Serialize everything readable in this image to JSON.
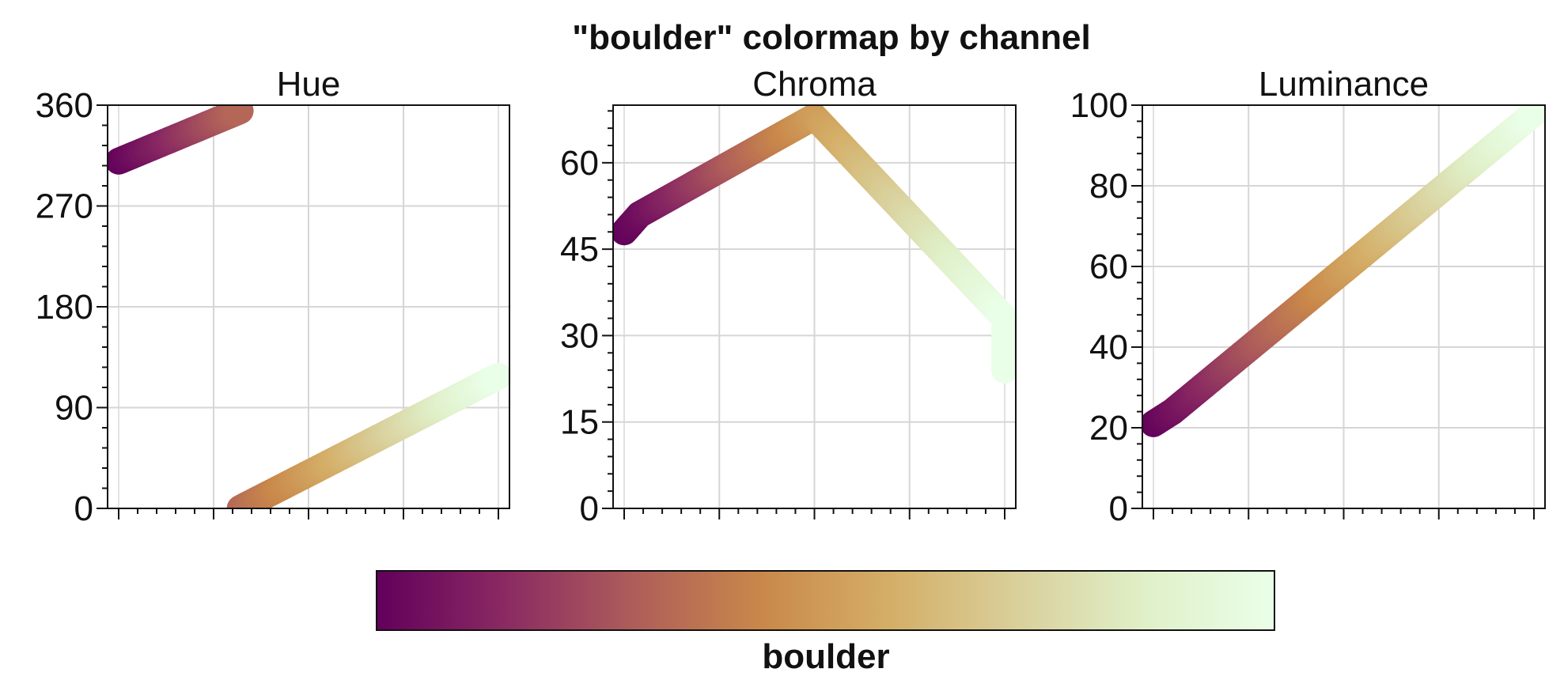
{
  "figure": {
    "title": "\"boulder\" colormap by channel"
  },
  "colormap": {
    "name": "boulder",
    "stops": [
      "#62005b",
      "#8a2a62",
      "#ae5d5a",
      "#c9884a",
      "#d4ae67",
      "#d9d09b",
      "#e0f0c9",
      "#e9ffe8"
    ]
  },
  "chart_data": [
    {
      "type": "line",
      "title": "Hue",
      "xlabel": "",
      "ylabel": "",
      "xlim": [
        0,
        1
      ],
      "ylim": [
        0,
        360
      ],
      "yticks": [
        0,
        90,
        180,
        270,
        360
      ],
      "x_major_ticks": [
        0,
        0.25,
        0.5,
        0.75,
        1
      ],
      "grid": true,
      "segments": [
        {
          "x": [
            0,
            0.32
          ],
          "y": [
            310,
            355
          ]
        },
        {
          "x": [
            0.32,
            1
          ],
          "y": [
            0,
            118
          ]
        }
      ]
    },
    {
      "type": "line",
      "title": "Chroma",
      "xlabel": "",
      "ylabel": "",
      "xlim": [
        0,
        1
      ],
      "ylim": [
        0,
        70
      ],
      "yticks": [
        0,
        15,
        30,
        45,
        60
      ],
      "x_major_ticks": [
        0,
        0.25,
        0.5,
        0.75,
        1
      ],
      "grid": true,
      "segments": [
        {
          "x": [
            0,
            0.04,
            0.5,
            1,
            1
          ],
          "y": [
            48,
            51,
            68,
            33,
            24
          ]
        }
      ]
    },
    {
      "type": "line",
      "title": "Luminance",
      "xlabel": "",
      "ylabel": "",
      "xlim": [
        0,
        1
      ],
      "ylim": [
        0,
        100
      ],
      "yticks": [
        0,
        20,
        40,
        60,
        80,
        100
      ],
      "x_major_ticks": [
        0,
        0.25,
        0.5,
        0.75,
        1
      ],
      "grid": true,
      "segments": [
        {
          "x": [
            0,
            0.05,
            1
          ],
          "y": [
            21,
            24,
            98
          ]
        }
      ]
    }
  ]
}
